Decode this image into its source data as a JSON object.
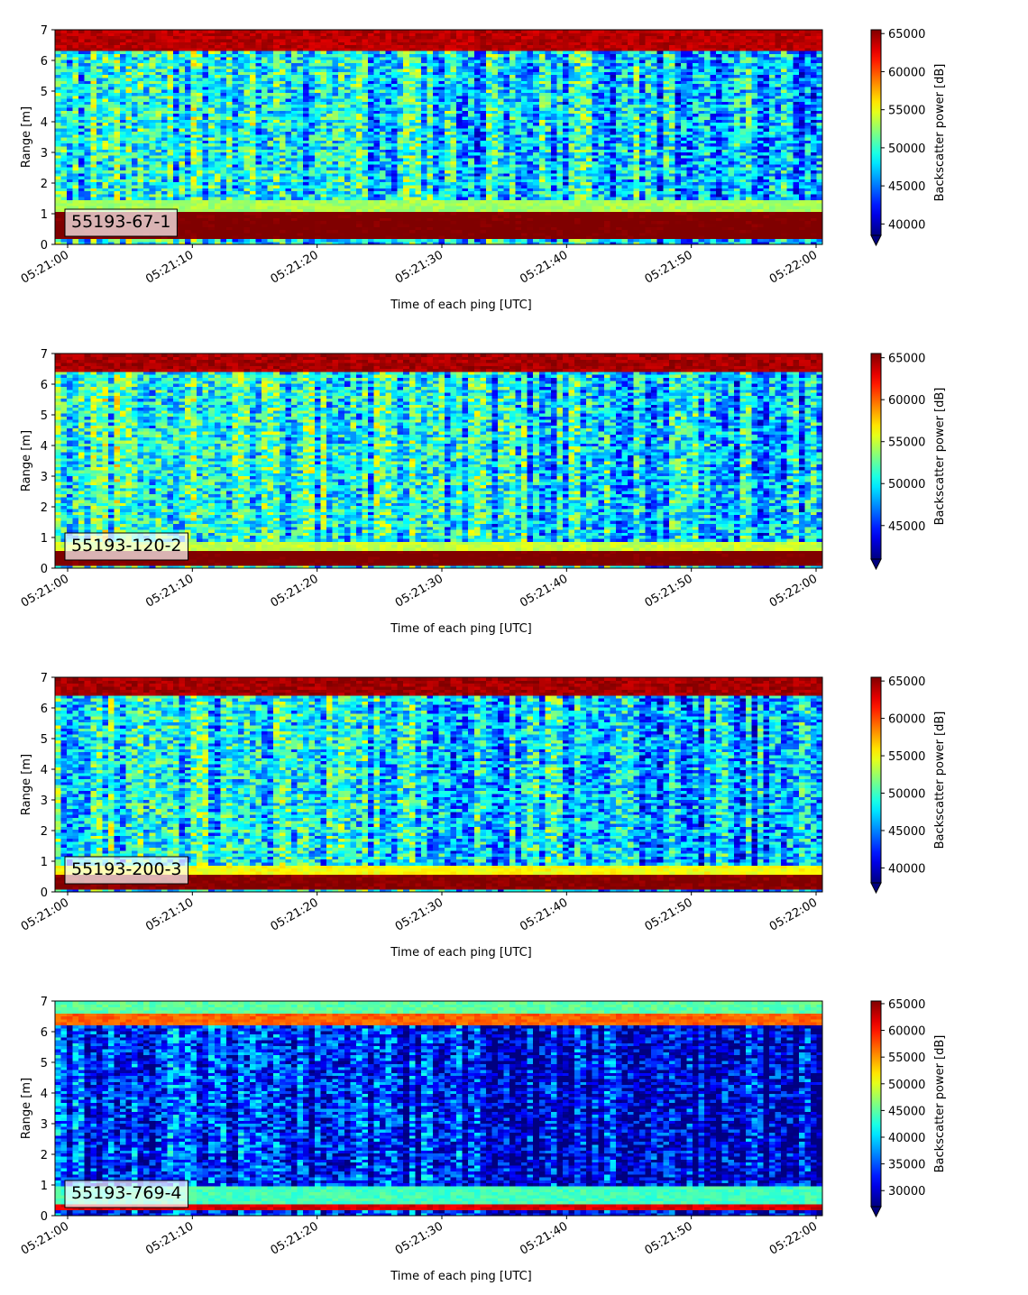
{
  "chart_data": [
    {
      "type": "heatmap",
      "label": "55193-67-1",
      "xlabel": "Time of each ping [UTC]",
      "ylabel": "Range [m]",
      "x_ticks": [
        "05:21:00",
        "05:21:10",
        "05:21:20",
        "05:21:30",
        "05:21:40",
        "05:21:50",
        "05:22:00"
      ],
      "x_range_seconds": [
        0,
        60
      ],
      "y_ticks": [
        0,
        1,
        2,
        3,
        4,
        5,
        6,
        7
      ],
      "ylim": [
        0,
        7
      ],
      "colorbar": {
        "label": "Backscatter power [dB]",
        "min": 38500,
        "max": 65500,
        "ticks": [
          40000,
          45000,
          50000,
          55000,
          60000,
          65000
        ],
        "extend": "min",
        "colormap": "jet"
      },
      "profile": {
        "base_level": 49500,
        "features": [
          {
            "y_range": [
              0.2,
              1.1
            ],
            "value": 66000
          },
          {
            "y_range": [
              1.1,
              1.5
            ],
            "value": 53000
          },
          {
            "y_range": [
              6.3,
              7.0
            ],
            "value": 64000
          }
        ]
      }
    },
    {
      "type": "heatmap",
      "label": "55193-120-2",
      "xlabel": "Time of each ping [UTC]",
      "ylabel": "Range [m]",
      "x_ticks": [
        "05:21:00",
        "05:21:10",
        "05:21:20",
        "05:21:30",
        "05:21:40",
        "05:21:50",
        "05:22:00"
      ],
      "x_range_seconds": [
        0,
        60
      ],
      "y_ticks": [
        0,
        1,
        2,
        3,
        4,
        5,
        6,
        7
      ],
      "ylim": [
        0,
        7
      ],
      "colorbar": {
        "label": "Backscatter power [dB]",
        "min": 41000,
        "max": 65500,
        "ticks": [
          45000,
          50000,
          55000,
          60000,
          65000
        ],
        "extend": "min",
        "colormap": "jet"
      },
      "profile": {
        "base_level": 51500,
        "features": [
          {
            "y_range": [
              0.1,
              0.55
            ],
            "value": 66000
          },
          {
            "y_range": [
              0.55,
              0.9
            ],
            "value": 55000
          },
          {
            "y_range": [
              6.4,
              7.0
            ],
            "value": 64500
          }
        ]
      }
    },
    {
      "type": "heatmap",
      "label": "55193-200-3",
      "xlabel": "Time of each ping [UTC]",
      "ylabel": "Range [m]",
      "x_ticks": [
        "05:21:00",
        "05:21:10",
        "05:21:20",
        "05:21:30",
        "05:21:40",
        "05:21:50",
        "05:22:00"
      ],
      "x_range_seconds": [
        0,
        60
      ],
      "y_ticks": [
        0,
        1,
        2,
        3,
        4,
        5,
        6,
        7
      ],
      "ylim": [
        0,
        7
      ],
      "colorbar": {
        "label": "Backscatter power [dB]",
        "min": 38000,
        "max": 65500,
        "ticks": [
          40000,
          45000,
          50000,
          55000,
          60000,
          65000
        ],
        "extend": "min",
        "colormap": "jet"
      },
      "profile": {
        "base_level": 49000,
        "features": [
          {
            "y_range": [
              0.1,
              0.6
            ],
            "value": 65500
          },
          {
            "y_range": [
              0.6,
              0.9
            ],
            "value": 55000
          },
          {
            "y_range": [
              6.4,
              7.0
            ],
            "value": 64500
          }
        ]
      }
    },
    {
      "type": "heatmap",
      "label": "55193-769-4",
      "xlabel": "Time of each ping [UTC]",
      "ylabel": "Range [m]",
      "x_ticks": [
        "05:21:00",
        "05:21:10",
        "05:21:20",
        "05:21:30",
        "05:21:40",
        "05:21:50",
        "05:22:00"
      ],
      "x_range_seconds": [
        0,
        60
      ],
      "y_ticks": [
        0,
        1,
        2,
        3,
        4,
        5,
        6,
        7
      ],
      "ylim": [
        0,
        7
      ],
      "colorbar": {
        "label": "Backscatter power [dB]",
        "min": 27000,
        "max": 65500,
        "ticks": [
          30000,
          35000,
          40000,
          45000,
          50000,
          55000,
          60000,
          65000
        ],
        "extend": "min",
        "colormap": "jet"
      },
      "profile": {
        "base_level": 34000,
        "features": [
          {
            "y_range": [
              0.15,
              0.35
            ],
            "value": 62000
          },
          {
            "y_range": [
              0.35,
              1.0
            ],
            "value": 44000
          },
          {
            "y_range": [
              6.2,
              6.6
            ],
            "value": 57000
          },
          {
            "y_range": [
              6.6,
              7.0
            ],
            "value": 45000
          }
        ]
      }
    }
  ]
}
